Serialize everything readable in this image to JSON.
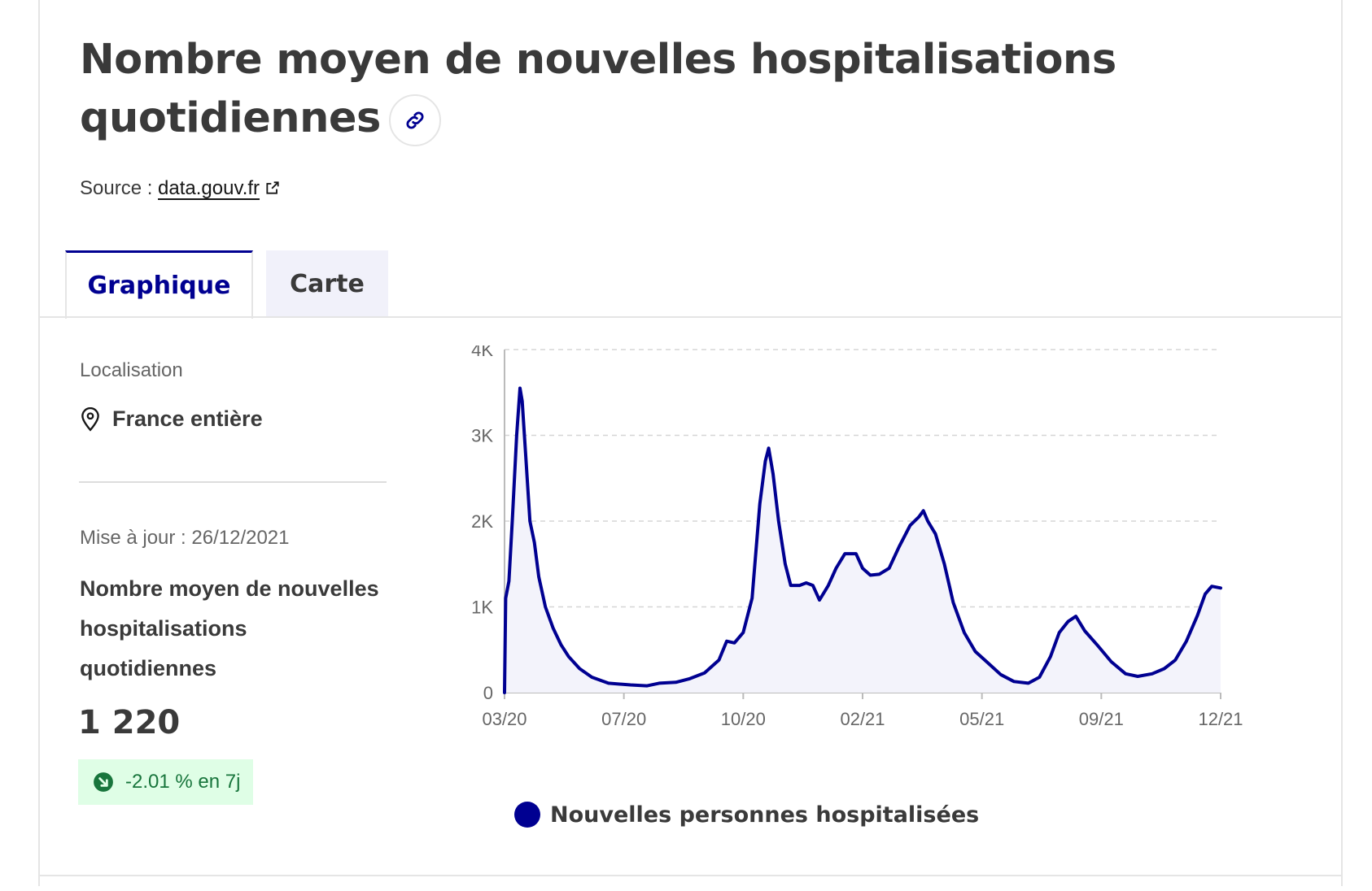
{
  "header": {
    "title": "Nombre moyen de nouvelles hospitalisations quotidiennes",
    "source_prefix": "Source : ",
    "source_link": "data.gouv.fr"
  },
  "tabs": [
    {
      "label": "Graphique",
      "active": true
    },
    {
      "label": "Carte",
      "active": false
    }
  ],
  "sidebar": {
    "location_label": "Localisation",
    "location_value": "France entière",
    "update_text": "Mise à jour : 26/12/2021",
    "kpi_title": "Nombre moyen de nouvelles hospitalisations quotidiennes",
    "kpi_value": "1 220",
    "trend_text": "-2.01 % en 7j"
  },
  "colors": {
    "accent": "#000091",
    "trend_bg": "#dffee6",
    "trend_text": "#18753c",
    "area_fill": "#f3f3fb"
  },
  "icons": {
    "link": "link-icon",
    "external": "external-link-icon",
    "location": "map-pin-icon",
    "trend": "arrow-down-right-icon"
  },
  "chart_data": {
    "type": "area",
    "x_tick_labels": [
      "03/20",
      "07/20",
      "10/20",
      "02/21",
      "05/21",
      "09/21",
      "12/21"
    ],
    "y_tick_labels": [
      "0",
      "1K",
      "2K",
      "3K",
      "4K"
    ],
    "ylim": [
      0,
      4000
    ],
    "x_start": "2020-03-18",
    "x_end": "2021-12-26",
    "grid": "horizontal-dashed",
    "legend_position": "bottom",
    "series": [
      {
        "name": "Nouvelles personnes hospitalisées",
        "color": "#000091",
        "points": [
          [
            "2020-03-18",
            0
          ],
          [
            "2020-03-19",
            1100
          ],
          [
            "2020-03-22",
            1300
          ],
          [
            "2020-03-25",
            2000
          ],
          [
            "2020-03-29",
            3000
          ],
          [
            "2020-04-01",
            3550
          ],
          [
            "2020-04-03",
            3400
          ],
          [
            "2020-04-06",
            2800
          ],
          [
            "2020-04-10",
            2000
          ],
          [
            "2020-04-14",
            1750
          ],
          [
            "2020-04-18",
            1350
          ],
          [
            "2020-04-24",
            1000
          ],
          [
            "2020-05-01",
            750
          ],
          [
            "2020-05-08",
            560
          ],
          [
            "2020-05-15",
            420
          ],
          [
            "2020-05-25",
            280
          ],
          [
            "2020-06-05",
            180
          ],
          [
            "2020-06-20",
            110
          ],
          [
            "2020-07-10",
            90
          ],
          [
            "2020-07-25",
            80
          ],
          [
            "2020-08-05",
            110
          ],
          [
            "2020-08-20",
            120
          ],
          [
            "2020-09-01",
            160
          ],
          [
            "2020-09-15",
            230
          ],
          [
            "2020-09-28",
            380
          ],
          [
            "2020-10-05",
            600
          ],
          [
            "2020-10-12",
            580
          ],
          [
            "2020-10-20",
            700
          ],
          [
            "2020-10-28",
            1100
          ],
          [
            "2020-11-04",
            2200
          ],
          [
            "2020-11-09",
            2700
          ],
          [
            "2020-11-12",
            2850
          ],
          [
            "2020-11-16",
            2550
          ],
          [
            "2020-11-21",
            2000
          ],
          [
            "2020-11-27",
            1500
          ],
          [
            "2020-12-02",
            1250
          ],
          [
            "2020-12-10",
            1250
          ],
          [
            "2020-12-16",
            1280
          ],
          [
            "2020-12-22",
            1250
          ],
          [
            "2020-12-28",
            1080
          ],
          [
            "2021-01-05",
            1250
          ],
          [
            "2021-01-12",
            1450
          ],
          [
            "2021-01-20",
            1620
          ],
          [
            "2021-01-30",
            1620
          ],
          [
            "2021-02-05",
            1450
          ],
          [
            "2021-02-12",
            1370
          ],
          [
            "2021-02-20",
            1380
          ],
          [
            "2021-03-01",
            1450
          ],
          [
            "2021-03-10",
            1700
          ],
          [
            "2021-03-20",
            1950
          ],
          [
            "2021-03-28",
            2050
          ],
          [
            "2021-04-01",
            2120
          ],
          [
            "2021-04-05",
            2000
          ],
          [
            "2021-04-12",
            1850
          ],
          [
            "2021-04-20",
            1500
          ],
          [
            "2021-04-28",
            1050
          ],
          [
            "2021-05-08",
            700
          ],
          [
            "2021-05-18",
            480
          ],
          [
            "2021-05-30",
            340
          ],
          [
            "2021-06-10",
            210
          ],
          [
            "2021-06-22",
            130
          ],
          [
            "2021-07-05",
            110
          ],
          [
            "2021-07-15",
            180
          ],
          [
            "2021-07-25",
            420
          ],
          [
            "2021-08-02",
            700
          ],
          [
            "2021-08-10",
            830
          ],
          [
            "2021-08-17",
            890
          ],
          [
            "2021-08-25",
            720
          ],
          [
            "2021-09-05",
            560
          ],
          [
            "2021-09-18",
            360
          ],
          [
            "2021-10-01",
            220
          ],
          [
            "2021-10-12",
            190
          ],
          [
            "2021-10-25",
            220
          ],
          [
            "2021-11-05",
            280
          ],
          [
            "2021-11-15",
            380
          ],
          [
            "2021-11-25",
            600
          ],
          [
            "2021-12-05",
            900
          ],
          [
            "2021-12-12",
            1150
          ],
          [
            "2021-12-18",
            1240
          ],
          [
            "2021-12-26",
            1220
          ]
        ]
      }
    ]
  }
}
